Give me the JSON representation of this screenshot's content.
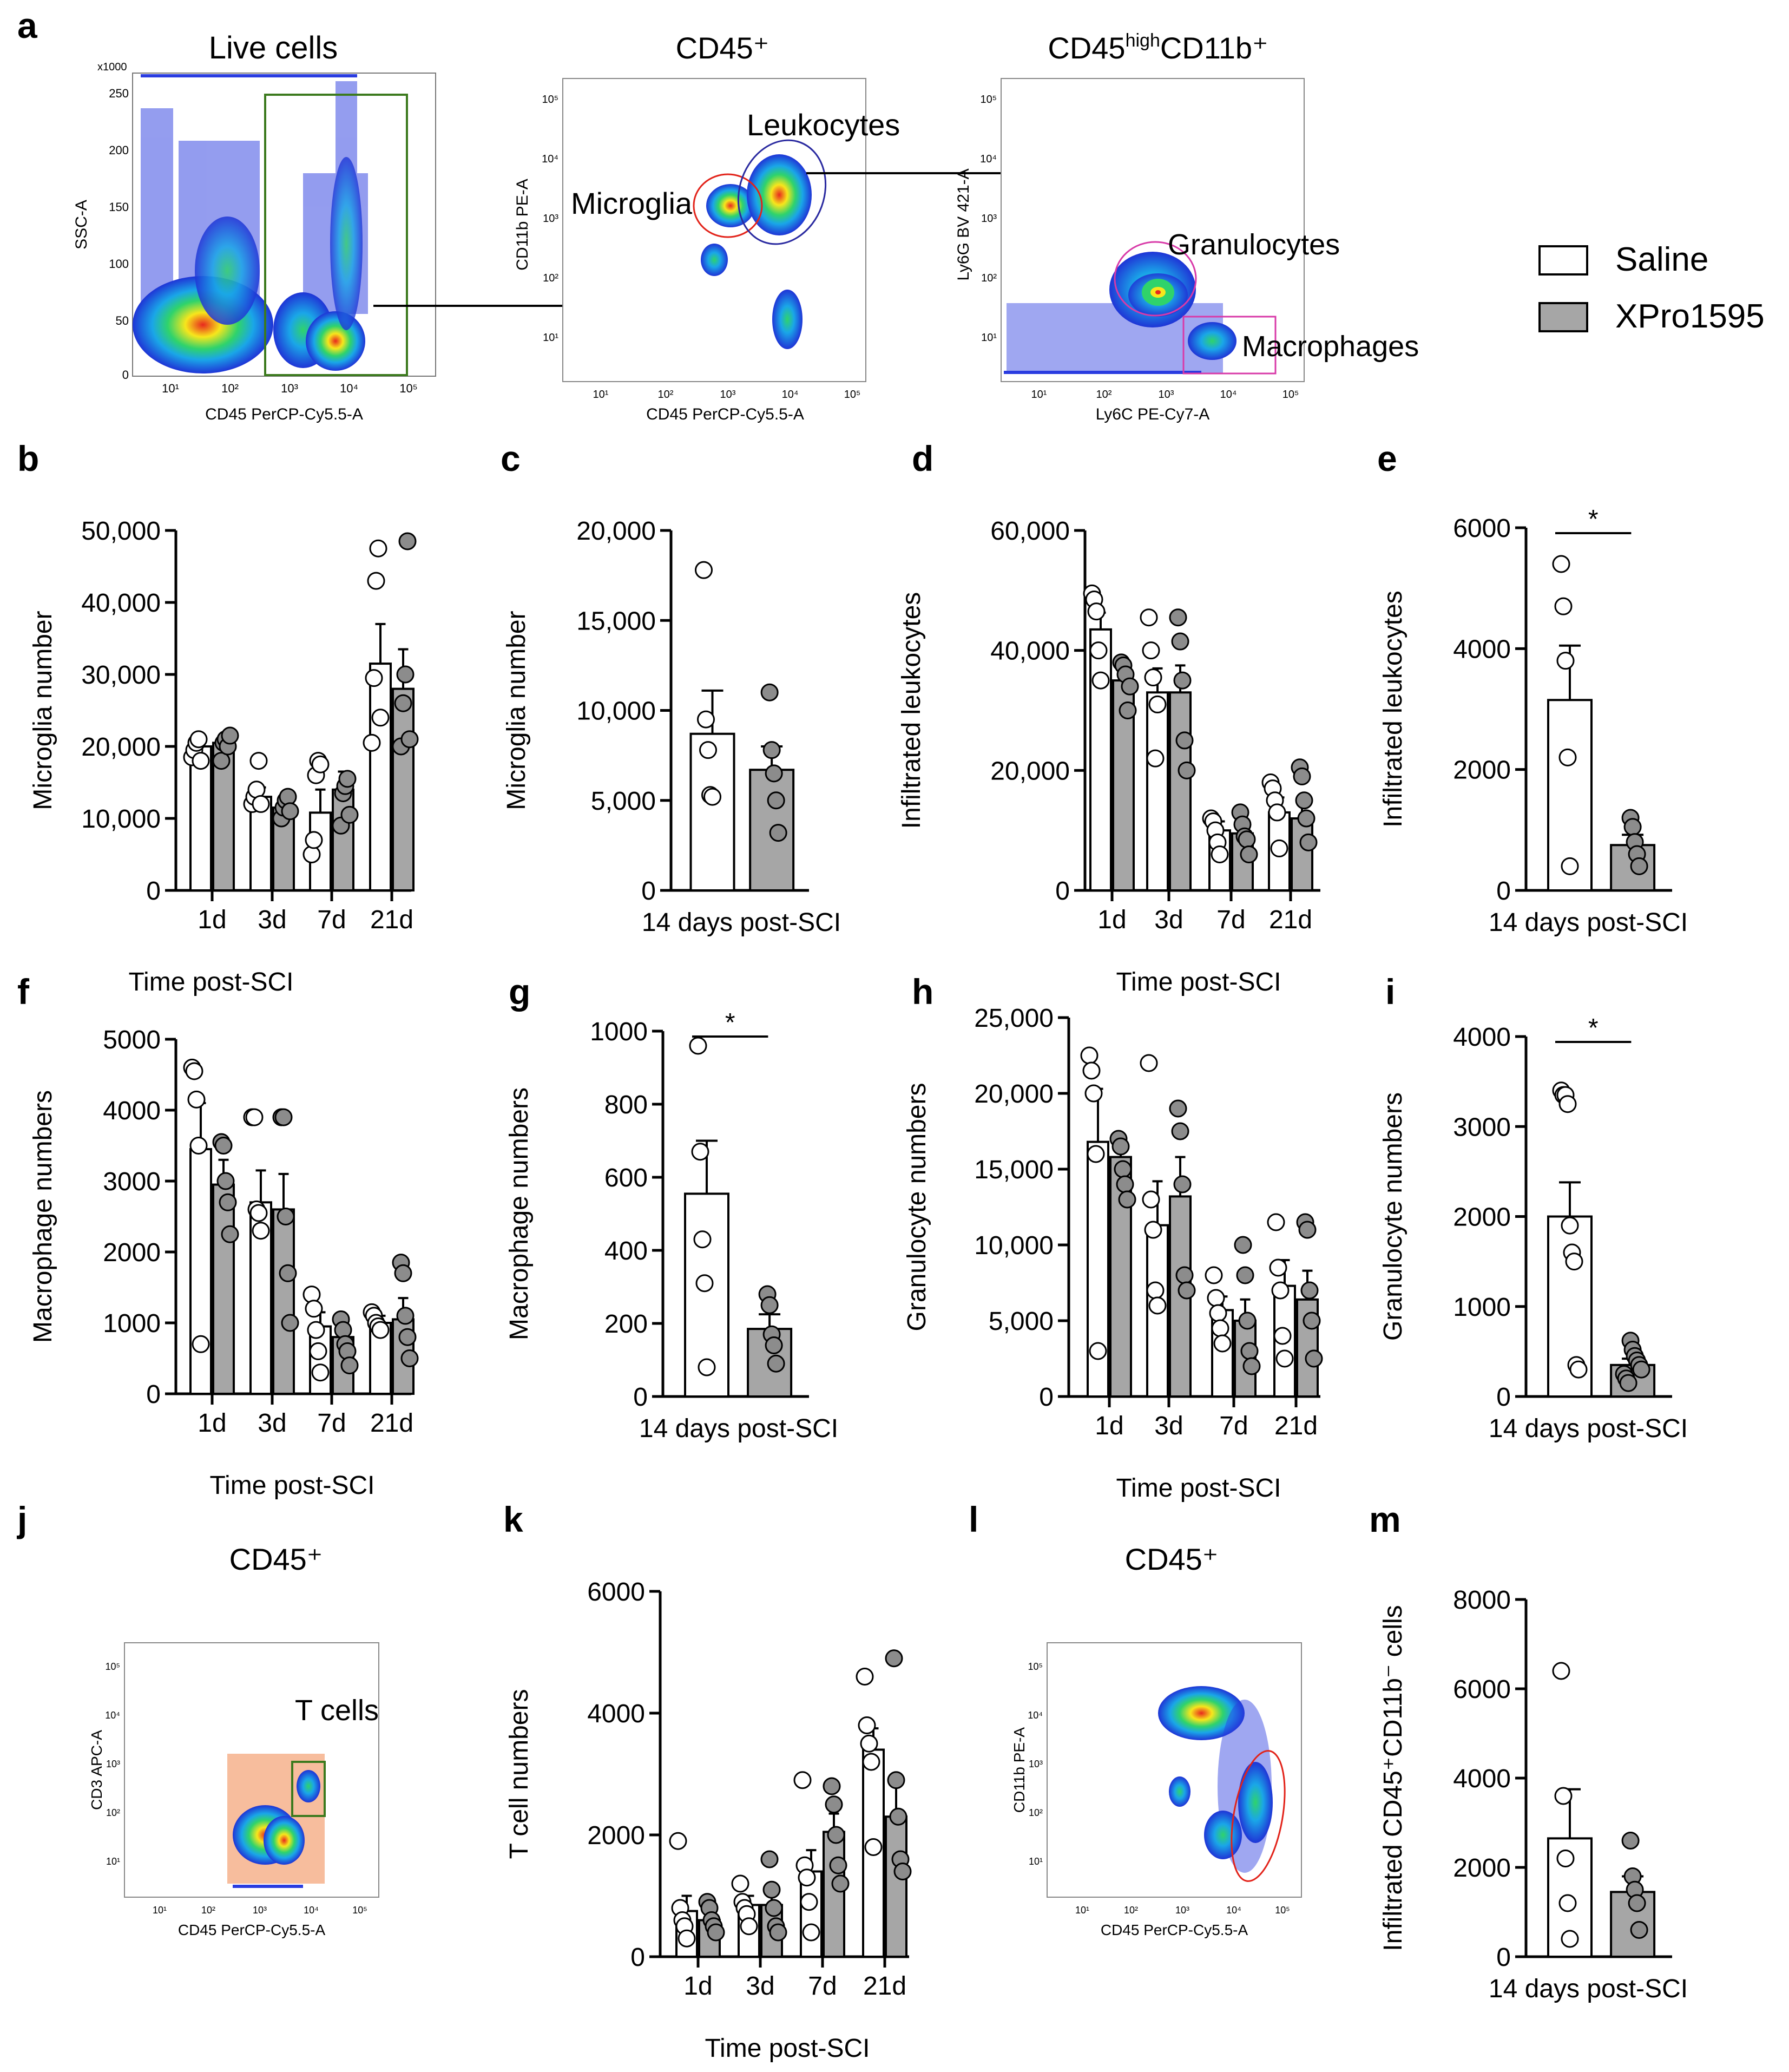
{
  "panel_letters": [
    "a",
    "b",
    "c",
    "d",
    "e",
    "f",
    "g",
    "h",
    "i",
    "j",
    "k",
    "l",
    "m"
  ],
  "legend": {
    "saline": {
      "label": "Saline",
      "color": "#ffffff"
    },
    "xpro": {
      "label": "XPro1595",
      "color": "#a6a6a6"
    }
  },
  "flow_panels": {
    "live": {
      "title": "Live cells",
      "x_label": "CD45 PerCP-Cy5.5-A",
      "y_label": "SSC-A",
      "y_multiplier": "x1000",
      "y_ticks": [
        "250",
        "200",
        "150",
        "100",
        "50",
        "0"
      ],
      "x_ticks": [
        "10¹",
        "10²",
        "10³",
        "10⁴",
        "10⁵"
      ]
    },
    "cd45": {
      "title": "CD45⁺",
      "x_label": "CD45 PerCP-Cy5.5-A",
      "y_label": "CD11b PE-A",
      "gate_left": "Microglia",
      "gate_right": "Leukocytes",
      "x_ticks": [
        "10¹",
        "10²",
        "10³",
        "10⁴",
        "10⁵"
      ],
      "y_ticks": [
        "10⁵",
        "10⁴",
        "10³",
        "10²",
        "10¹"
      ]
    },
    "cd45high": {
      "title_main": "CD45",
      "title_sup": "high",
      "title_rest": "CD11b⁺",
      "x_label": "Ly6C PE-Cy7-A",
      "y_label": "Ly6G BV 421-A",
      "gate_top": "Granulocytes",
      "gate_bottom": "Macrophages",
      "x_ticks": [
        "10¹",
        "10²",
        "10³",
        "10⁴",
        "10⁵"
      ],
      "y_ticks": [
        "10⁵",
        "10⁴",
        "10³",
        "10²",
        "10¹"
      ]
    },
    "j": {
      "title": "CD45⁺",
      "x_label": "CD45 PerCP-Cy5.5-A",
      "y_label": "CD3 APC-A",
      "gate": "T cells",
      "x_ticks": [
        "10¹",
        "10²",
        "10³",
        "10⁴",
        "10⁵"
      ],
      "y_ticks": [
        "10⁵",
        "10⁴",
        "10³",
        "10²",
        "10¹"
      ]
    },
    "l": {
      "title": "CD45⁺",
      "x_label": "CD45 PerCP-Cy5.5-A",
      "y_label": "CD11b PE-A",
      "x_ticks": [
        "10¹",
        "10²",
        "10³",
        "10⁴",
        "10⁵"
      ],
      "y_ticks": [
        "10⁵",
        "10⁴",
        "10³",
        "10²",
        "10¹"
      ]
    }
  },
  "chart_data": [
    {
      "id": "b",
      "type": "bar",
      "ylabel": "Microglia number",
      "xlabel": "Time post-SCI",
      "categories": [
        "1d",
        "3d",
        "7d",
        "21d"
      ],
      "ylim": [
        0,
        50000
      ],
      "yticks": [
        "0",
        "10,000",
        "20,000",
        "30,000",
        "40,000",
        "50,000"
      ],
      "series": [
        {
          "name": "Saline",
          "values": [
            20000,
            13000,
            10800,
            31500
          ],
          "sem": [
            1200,
            1300,
            3200,
            5500
          ],
          "points": [
            [
              18500,
              19500,
              20500,
              21000,
              18000
            ],
            [
              12000,
              13000,
              14000,
              18000,
              12000
            ],
            [
              5000,
              7000,
              16000,
              18000,
              17500
            ],
            [
              20500,
              29500,
              43000,
              47500,
              24000
            ]
          ]
        },
        {
          "name": "XPro1595",
          "values": [
            20500,
            11500,
            14000,
            28000
          ],
          "sem": [
            900,
            1200,
            2500,
            5500
          ],
          "points": [
            [
              18000,
              20500,
              21000,
              20000,
              21500
            ],
            [
              10000,
              11500,
              12500,
              13000,
              11000
            ],
            [
              9000,
              13500,
              14500,
              15500,
              10500
            ],
            [
              20000,
              26000,
              30000,
              48500,
              21000
            ]
          ]
        }
      ]
    },
    {
      "id": "c",
      "type": "bar",
      "ylabel": "Microglia number",
      "xlabel": "14 days post-SCI",
      "categories": [
        "14 days post-SCI"
      ],
      "ylim": [
        0,
        20000
      ],
      "yticks": [
        "0",
        "5,000",
        "10,000",
        "15,000",
        "20,000"
      ],
      "series": [
        {
          "name": "Saline",
          "values": [
            8700
          ],
          "sem": [
            2400
          ],
          "points": [
            [
              17800,
              9500,
              7800,
              5300,
              5200
            ]
          ]
        },
        {
          "name": "XPro1595",
          "values": [
            6700
          ],
          "sem": [
            1300
          ],
          "points": [
            [
              11000,
              7800,
              6500,
              5000,
              3200
            ]
          ]
        }
      ]
    },
    {
      "id": "d",
      "type": "bar",
      "ylabel": "Infiltrated leukocytes",
      "xlabel": "Time post-SCI",
      "categories": [
        "1d",
        "3d",
        "7d",
        "21d"
      ],
      "ylim": [
        0,
        60000
      ],
      "yticks": [
        "0",
        "20,000",
        "40,000",
        "60,000"
      ],
      "series": [
        {
          "name": "Saline",
          "values": [
            43500,
            33000,
            10000,
            13000
          ],
          "sem": [
            2800,
            4000,
            1500,
            2500
          ],
          "points": [
            [
              49500,
              48500,
              46500,
              40000,
              35000
            ],
            [
              45500,
              40000,
              35500,
              22000,
              31000
            ],
            [
              12000,
              11500,
              10000,
              8000,
              6000
            ],
            [
              18000,
              17000,
              15000,
              13000,
              7000
            ]
          ]
        },
        {
          "name": "XPro1595",
          "values": [
            35000,
            33000,
            9500,
            12000
          ],
          "sem": [
            2500,
            4500,
            1800,
            3500
          ],
          "points": [
            [
              38000,
              37500,
              36000,
              30000,
              34000
            ],
            [
              45500,
              41500,
              35000,
              25000,
              20000
            ],
            [
              13000,
              11000,
              9000,
              8500,
              6000
            ],
            [
              20500,
              19000,
              15000,
              12000,
              8000
            ]
          ]
        }
      ]
    },
    {
      "id": "e",
      "type": "bar",
      "ylabel": "Infiltrated leukocytes",
      "xlabel": "14 days post-SCI",
      "categories": [
        "14 days post-SCI"
      ],
      "ylim": [
        0,
        6000
      ],
      "yticks": [
        "0",
        "2000",
        "4000",
        "6000"
      ],
      "sig": "*",
      "series": [
        {
          "name": "Saline",
          "values": [
            3150
          ],
          "sem": [
            900
          ],
          "points": [
            [
              5400,
              4700,
              3800,
              2200,
              400
            ]
          ]
        },
        {
          "name": "XPro1595",
          "values": [
            750
          ],
          "sem": [
            170
          ],
          "points": [
            [
              1200,
              1050,
              800,
              600,
              400
            ]
          ]
        }
      ]
    },
    {
      "id": "f",
      "type": "bar",
      "ylabel": "Macrophage numbers",
      "xlabel": "Time post-SCI",
      "categories": [
        "1d",
        "3d",
        "7d",
        "21d"
      ],
      "ylim": [
        0,
        5000
      ],
      "yticks": [
        "0",
        "1000",
        "2000",
        "3000",
        "4000",
        "5000"
      ],
      "series": [
        {
          "name": "Saline",
          "values": [
            3450,
            2700,
            950,
            1000
          ],
          "sem": [
            650,
            450,
            200,
            100
          ],
          "points": [
            [
              4600,
              4550,
              4150,
              3500,
              700
            ],
            [
              3900,
              3900,
              2600,
              2550,
              2300
            ],
            [
              1400,
              1200,
              900,
              600,
              300
            ],
            [
              1150,
              1100,
              1000,
              950,
              900
            ]
          ]
        },
        {
          "name": "XPro1595",
          "values": [
            2950,
            2600,
            800,
            1050
          ],
          "sem": [
            350,
            500,
            150,
            300
          ],
          "points": [
            [
              3550,
              3500,
              3000,
              2700,
              2250
            ],
            [
              3900,
              3900,
              2500,
              1700,
              1000
            ],
            [
              1050,
              900,
              700,
              600,
              400
            ],
            [
              1850,
              1700,
              1100,
              800,
              500
            ]
          ]
        }
      ]
    },
    {
      "id": "g",
      "type": "bar",
      "ylabel": "Macrophage numbers",
      "xlabel": "14 days post-SCI",
      "categories": [
        "14 days post-SCI"
      ],
      "ylim": [
        0,
        1000
      ],
      "yticks": [
        "0",
        "200",
        "400",
        "600",
        "800",
        "1000"
      ],
      "sig": "*",
      "series": [
        {
          "name": "Saline",
          "values": [
            555
          ],
          "sem": [
            145
          ],
          "points": [
            [
              960,
              670,
              430,
              310,
              80
            ]
          ]
        },
        {
          "name": "XPro1595",
          "values": [
            185
          ],
          "sem": [
            40
          ],
          "points": [
            [
              280,
              250,
              170,
              140,
              90
            ]
          ]
        }
      ]
    },
    {
      "id": "h",
      "type": "bar",
      "ylabel": "Granulocyte numbers",
      "xlabel": "Time post-SCI",
      "categories": [
        "1d",
        "3d",
        "7d",
        "21d"
      ],
      "ylim": [
        0,
        25000
      ],
      "yticks": [
        "0",
        "5,000",
        "10,000",
        "15,000",
        "20,000",
        "25,000"
      ],
      "series": [
        {
          "name": "Saline",
          "values": [
            16800,
            11300,
            5700,
            7300
          ],
          "sem": [
            3500,
            2900,
            900,
            1700
          ],
          "points": [
            [
              22500,
              21500,
              20000,
              16000,
              3000
            ],
            [
              22000,
              13000,
              11000,
              7000,
              6000
            ],
            [
              8000,
              6500,
              5500,
              4500,
              3500
            ],
            [
              11500,
              8500,
              7000,
              4000,
              2500
            ]
          ]
        },
        {
          "name": "XPro1595",
          "values": [
            15800,
            13200,
            5000,
            6400
          ],
          "sem": [
            800,
            2600,
            1400,
            1900
          ],
          "points": [
            [
              17000,
              16500,
              15000,
              14000,
              13000
            ],
            [
              19000,
              17500,
              14000,
              8000,
              7000
            ],
            [
              10000,
              8000,
              5000,
              3000,
              2000
            ],
            [
              11500,
              11000,
              7000,
              5000,
              2500
            ]
          ]
        }
      ]
    },
    {
      "id": "i",
      "type": "bar",
      "ylabel": "Granulocyte numbers",
      "xlabel": "14 days post-SCI",
      "categories": [
        "14 days post-SCI"
      ],
      "ylim": [
        0,
        4000
      ],
      "yticks": [
        "0",
        "1000",
        "2000",
        "3000",
        "4000"
      ],
      "sig": "*",
      "series": [
        {
          "name": "Saline",
          "values": [
            2000
          ],
          "sem": [
            380
          ],
          "points": [
            [
              3400,
              3350,
              3350,
              3250,
              1900,
              1600,
              1500,
              350,
              300
            ]
          ]
        },
        {
          "name": "XPro1595",
          "values": [
            350
          ],
          "sem": [
            70
          ],
          "points": [
            [
              620,
              520,
              450,
              400,
              350,
              300,
              250,
              200,
              150
            ]
          ]
        }
      ]
    },
    {
      "id": "k",
      "type": "bar",
      "ylabel": "T cell numbers",
      "xlabel": "Time post-SCI",
      "categories": [
        "1d",
        "3d",
        "7d",
        "21d"
      ],
      "ylim": [
        0,
        6000
      ],
      "yticks": [
        "0",
        "2000",
        "4000",
        "6000"
      ],
      "series": [
        {
          "name": "Saline",
          "values": [
            750,
            850,
            1400,
            3400
          ],
          "sem": [
            250,
            150,
            350,
            350
          ],
          "points": [
            [
              1900,
              800,
              600,
              500,
              300
            ],
            [
              1200,
              900,
              800,
              700,
              500
            ],
            [
              2900,
              1500,
              1300,
              900,
              400
            ],
            [
              4600,
              3800,
              3500,
              3200,
              1800
            ]
          ]
        },
        {
          "name": "XPro1595",
          "values": [
            600,
            850,
            2050,
            2300
          ],
          "sem": [
            150,
            150,
            300,
            650
          ],
          "points": [
            [
              900,
              800,
              600,
              500,
              400
            ],
            [
              1600,
              1100,
              800,
              500,
              400
            ],
            [
              2800,
              2500,
              2000,
              1500,
              1200
            ],
            [
              4900,
              2900,
              2300,
              1600,
              1400
            ]
          ]
        }
      ]
    },
    {
      "id": "m",
      "type": "bar",
      "ylabel": "Infiltrated CD45⁺CD11b⁻ cells",
      "xlabel": "14 days post-SCI",
      "categories": [
        "14 days post-SCI"
      ],
      "ylim": [
        0,
        8000
      ],
      "yticks": [
        "0",
        "2000",
        "4000",
        "6000",
        "8000"
      ],
      "series": [
        {
          "name": "Saline",
          "values": [
            2650
          ],
          "sem": [
            1100
          ],
          "points": [
            [
              6400,
              3600,
              2200,
              1200,
              400
            ]
          ]
        },
        {
          "name": "XPro1595",
          "values": [
            1450
          ],
          "sem": [
            350
          ],
          "points": [
            [
              2600,
              1800,
              1500,
              1200,
              600
            ]
          ]
        }
      ]
    }
  ]
}
